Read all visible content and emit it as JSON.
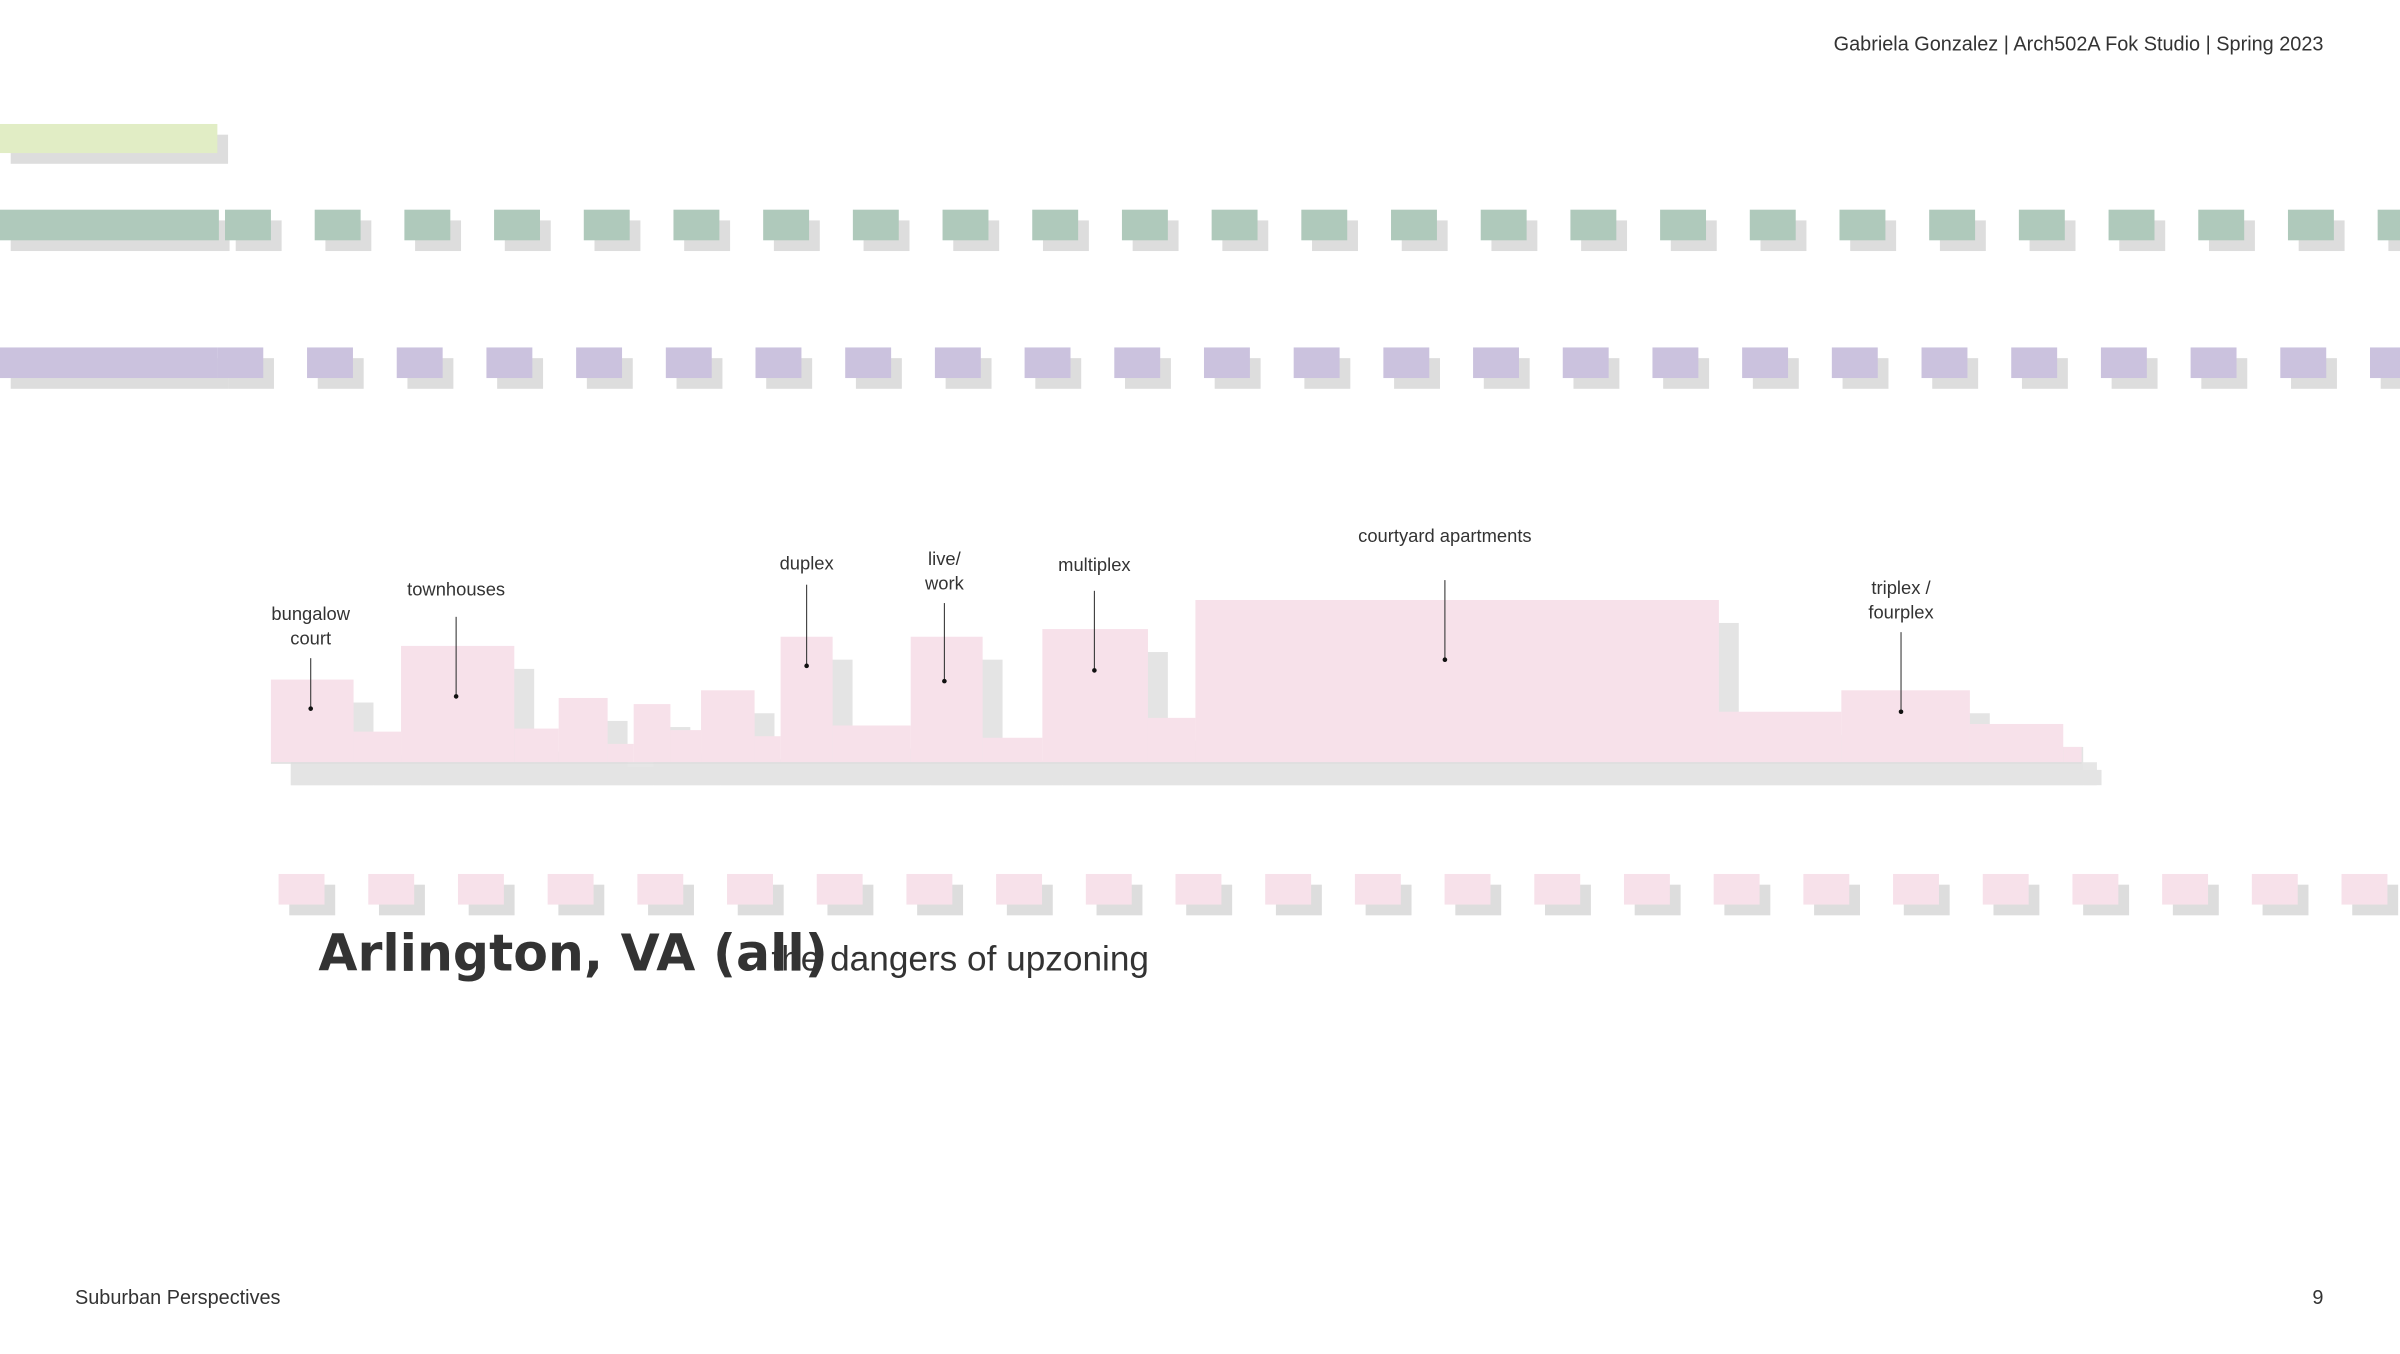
{
  "header": {
    "credit": "Gabriela Gonzalez | Arch502A Fok Studio | Spring 2023"
  },
  "labels": [
    {
      "lines": [
        "bungalow",
        "court"
      ]
    },
    {
      "lines": [
        "townhouses"
      ]
    },
    {
      "lines": [
        "duplex"
      ]
    },
    {
      "lines": [
        "live/",
        "work"
      ]
    },
    {
      "lines": [
        "multiplex"
      ]
    },
    {
      "lines": [
        "courtyard apartments"
      ]
    },
    {
      "lines": [
        "triplex /",
        "fourplex"
      ]
    }
  ],
  "title": "Arlington, VA (all)",
  "subtitle": "the dangers of upzoning",
  "footer": {
    "left": "Suburban Perspectives",
    "page": "9"
  }
}
